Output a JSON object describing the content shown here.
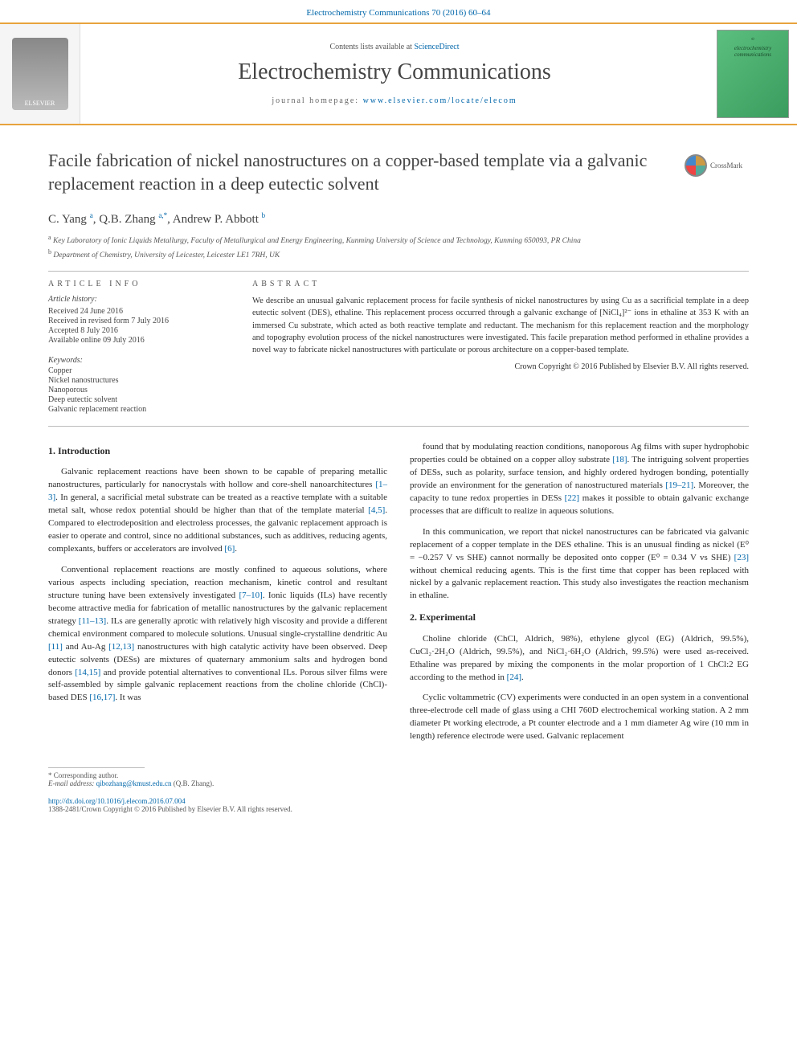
{
  "journal_ref": "Electrochemistry Communications 70 (2016) 60–64",
  "banner": {
    "publisher_logo_label": "ELSEVIER",
    "contents_prefix": "Contents lists available at ",
    "contents_link": "ScienceDirect",
    "journal_name": "Electrochemistry Communications",
    "homepage_prefix": "journal homepage: ",
    "homepage_url": "www.elsevier.com/locate/elecom",
    "cover_top": "℮",
    "cover_title": "electrochemistry communications"
  },
  "crossmark_label": "CrossMark",
  "article": {
    "title": "Facile fabrication of nickel nanostructures on a copper-based template via a galvanic replacement reaction in a deep eutectic solvent",
    "authors_html": "C. Yang <sup>a</sup>, Q.B. Zhang <sup>a,*</sup>, Andrew P. Abbott <sup>b</sup>",
    "affiliations": [
      {
        "key": "a",
        "text": "Key Laboratory of Ionic Liquids Metallurgy, Faculty of Metallurgical and Energy Engineering, Kunming University of Science and Technology, Kunming 650093, PR China"
      },
      {
        "key": "b",
        "text": "Department of Chemistry, University of Leicester, Leicester LE1 7RH, UK"
      }
    ]
  },
  "info": {
    "head": "ARTICLE INFO",
    "history_head": "Article history:",
    "history": [
      "Received 24 June 2016",
      "Received in revised form 7 July 2016",
      "Accepted 8 July 2016",
      "Available online 09 July 2016"
    ],
    "keywords_head": "Keywords:",
    "keywords": [
      "Copper",
      "Nickel nanostructures",
      "Nanoporous",
      "Deep eutectic solvent",
      "Galvanic replacement reaction"
    ]
  },
  "abstract": {
    "head": "ABSTRACT",
    "text": "We describe an unusual galvanic replacement process for facile synthesis of nickel nanostructures by using Cu as a sacrificial template in a deep eutectic solvent (DES), ethaline. This replacement process occurred through a galvanic exchange of [NiCl₄]²⁻ ions in ethaline at 353 K with an immersed Cu substrate, which acted as both reactive template and reductant. The mechanism for this replacement reaction and the morphology and topography evolution process of the nickel nanostructures were investigated. This facile preparation method performed in ethaline provides a novel way to fabricate nickel nanostructures with particulate or porous architecture on a copper-based template.",
    "copyright": "Crown Copyright © 2016 Published by Elsevier B.V. All rights reserved."
  },
  "body": {
    "left": {
      "heading1": "1. Introduction",
      "p1": "Galvanic replacement reactions have been shown to be capable of preparing metallic nanostructures, particularly for nanocrystals with hollow and core-shell nanoarchitectures [1–3]. In general, a sacrificial metal substrate can be treated as a reactive template with a suitable metal salt, whose redox potential should be higher than that of the template material [4,5]. Compared to electrodeposition and electroless processes, the galvanic replacement approach is easier to operate and control, since no additional substances, such as additives, reducing agents, complexants, buffers or accelerators are involved [6].",
      "p2": "Conventional replacement reactions are mostly confined to aqueous solutions, where various aspects including speciation, reaction mechanism, kinetic control and resultant structure tuning have been extensively investigated [7–10]. Ionic liquids (ILs) have recently become attractive media for fabrication of metallic nanostructures by the galvanic replacement strategy [11–13]. ILs are generally aprotic with relatively high viscosity and provide a different chemical environment compared to molecule solutions. Unusual single-crystalline dendritic Au [11] and Au-Ag [12,13] nanostructures with high catalytic activity have been observed. Deep eutectic solvents (DESs) are mixtures of quaternary ammonium salts and hydrogen bond donors [14,15] and provide potential alternatives to conventional ILs. Porous silver films were self-assembled by simple galvanic replacement reactions from the choline chloride (ChCl)-based DES [16,17]. It was"
    },
    "right": {
      "p1": "found that by modulating reaction conditions, nanoporous Ag films with super hydrophobic properties could be obtained on a copper alloy substrate [18]. The intriguing solvent properties of DESs, such as polarity, surface tension, and highly ordered hydrogen bonding, potentially provide an environment for the generation of nanostructured materials [19–21]. Moreover, the capacity to tune redox properties in DESs [22] makes it possible to obtain galvanic exchange processes that are difficult to realize in aqueous solutions.",
      "p2": "In this communication, we report that nickel nanostructures can be fabricated via galvanic replacement of a copper template in the DES ethaline. This is an unusual finding as nickel (E⁰ = −0.257 V vs SHE) cannot normally be deposited onto copper (E⁰ = 0.34 V vs SHE) [23] without chemical reducing agents. This is the first time that copper has been replaced with nickel by a galvanic replacement reaction. This study also investigates the reaction mechanism in ethaline.",
      "heading2": "2. Experimental",
      "p3": "Choline chloride (ChCl, Aldrich, 98%), ethylene glycol (EG) (Aldrich, 99.5%), CuCl₂·2H₂O (Aldrich, 99.5%), and NiCl₂·6H₂O (Aldrich, 99.5%) were used as-received. Ethaline was prepared by mixing the components in the molar proportion of 1 ChCl:2 EG according to the method in [24].",
      "p4": "Cyclic voltammetric (CV) experiments were conducted in an open system in a conventional three-electrode cell made of glass using a CHI 760D electrochemical working station. A 2 mm diameter Pt working electrode, a Pt counter electrode and a 1 mm diameter Ag wire (10 mm in length) reference electrode were used. Galvanic replacement"
    }
  },
  "footer": {
    "corr_label": "* Corresponding author.",
    "email_label": "E-mail address: ",
    "email": "qibozhang@kmust.edu.cn",
    "email_name": " (Q.B. Zhang).",
    "doi": "http://dx.doi.org/10.1016/j.elecom.2016.07.004",
    "issn_copy": "1388-2481/Crown Copyright © 2016 Published by Elsevier B.V. All rights reserved."
  },
  "refs": {
    "r1_3": "[1–3]",
    "r4_5": "[4,5]",
    "r6": "[6]",
    "r7_10": "[7–10]",
    "r11_13": "[11–13]",
    "r11": "[11]",
    "r12_13": "[12,13]",
    "r14_15": "[14,15]",
    "r16_17": "[16,17]",
    "r18": "[18]",
    "r19_21": "[19–21]",
    "r22": "[22]",
    "r23": "[23]",
    "r24": "[24]"
  },
  "colors": {
    "accent_orange": "#e8a33d",
    "link_blue": "#0066aa",
    "text_dark": "#333333",
    "cover_green": "#5bbf7f"
  }
}
